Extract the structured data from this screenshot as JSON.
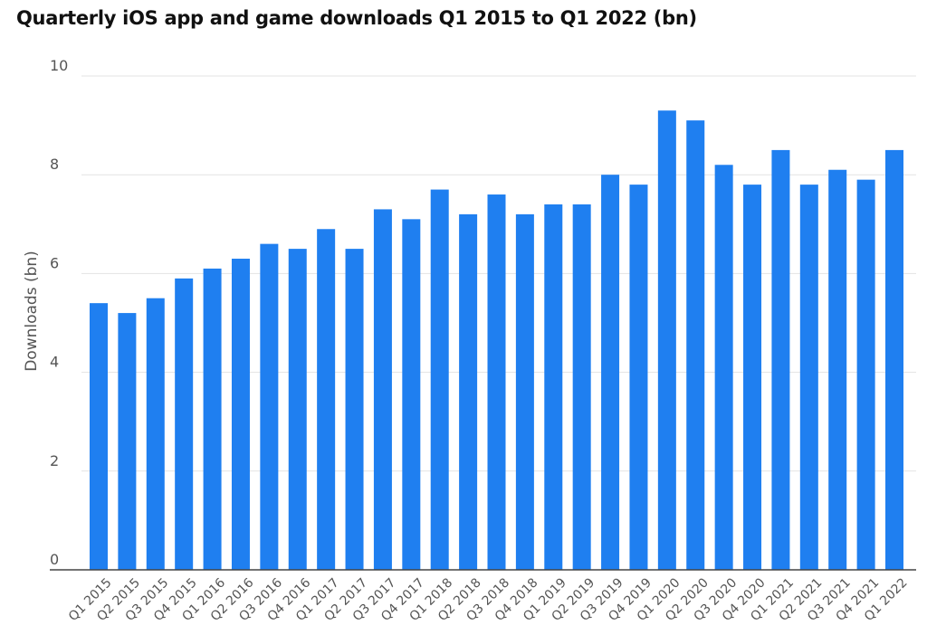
{
  "chart_data": {
    "type": "bar",
    "title": "Quarterly iOS app and game downloads Q1 2015 to Q1 2022 (bn)",
    "xlabel": "",
    "ylabel": "Downloads (bn)",
    "ylim": [
      0,
      10
    ],
    "yticks": [
      "0",
      "2",
      "4",
      "6",
      "8",
      "10"
    ],
    "grid": true,
    "categories": [
      "Q1 2015",
      "Q2 2015",
      "Q3 2015",
      "Q4 2015",
      "Q1 2016",
      "Q2 2016",
      "Q3 2016",
      "Q4 2016",
      "Q1 2017",
      "Q2 2017",
      "Q3 2017",
      "Q4 2017",
      "Q1 2018",
      "Q2 2018",
      "Q3 2018",
      "Q4 2018",
      "Q1 2019",
      "Q2 2019",
      "Q3 2019",
      "Q4 2019",
      "Q1 2020",
      "Q2 2020",
      "Q3 2020",
      "Q4 2020",
      "Q1 2021",
      "Q2 2021",
      "Q3 2021",
      "Q4 2021",
      "Q1 2022"
    ],
    "values": [
      5.4,
      5.2,
      5.5,
      5.9,
      6.1,
      6.3,
      6.6,
      6.5,
      6.9,
      6.5,
      7.3,
      7.1,
      7.7,
      7.2,
      7.6,
      7.2,
      7.4,
      7.4,
      8.0,
      7.8,
      9.3,
      9.1,
      8.2,
      7.8,
      8.5,
      7.8,
      8.1,
      7.9,
      8.5
    ],
    "bar_color": "#1f7ff0"
  }
}
